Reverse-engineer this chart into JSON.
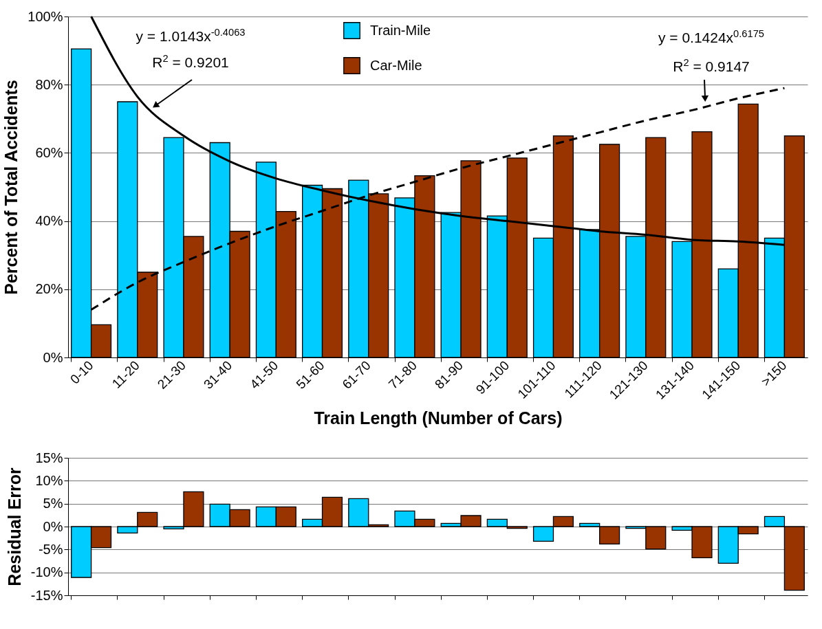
{
  "chart_data": [
    {
      "type": "bar",
      "ylabel": "Percent of Total Accidents",
      "xlabel": "Train Length (Number of Cars)",
      "categories": [
        "0-10",
        "11-20",
        "21-30",
        "31-40",
        "41-50",
        "51-60",
        "61-70",
        "71-80",
        "81-90",
        "91-100",
        "101-110",
        "111-120",
        "121-130",
        "131-140",
        "141-150",
        ">150"
      ],
      "series": [
        {
          "name": "Train-Mile",
          "color": "#00ccff",
          "values": [
            90.5,
            75,
            64.5,
            63,
            57.3,
            50.5,
            52,
            46.8,
            42.5,
            41.5,
            35,
            37.5,
            35.5,
            34,
            26,
            35
          ]
        },
        {
          "name": "Car-Mile",
          "color": "#993300",
          "values": [
            9.6,
            25,
            35.5,
            37,
            42.8,
            49.5,
            48,
            53.3,
            57.7,
            58.5,
            65,
            62.5,
            64.5,
            66.2,
            74.3,
            65
          ]
        },
        {
          "type": "line",
          "color": "#000000",
          "line_style": "solid",
          "values": [
            100,
            76.5,
            65,
            57.5,
            52.5,
            49,
            46,
            43.5,
            41.5,
            40,
            38.5,
            37,
            36,
            34.5,
            34,
            33
          ]
        },
        {
          "type": "line",
          "color": "#000000",
          "line_style": "dashed",
          "values": [
            14,
            22,
            28,
            33.5,
            38.5,
            43,
            47.5,
            51.5,
            55.5,
            59,
            62.5,
            66,
            69.5,
            72.5,
            76,
            79
          ]
        }
      ],
      "ylim": [
        0,
        100
      ],
      "yticks": [
        {
          "value": 0,
          "label": "0%"
        },
        {
          "value": 20,
          "label": "20%"
        },
        {
          "value": 40,
          "label": "40%"
        },
        {
          "value": 60,
          "label": "60%"
        },
        {
          "value": 80,
          "label": "80%"
        },
        {
          "value": 100,
          "label": "100%"
        }
      ],
      "grid": "y",
      "legend": "top",
      "annotations": [
        "y = 1.0143x$^{-0.4063}$",
        "R$^{2}$ = 0.9201",
        "y = 0.1424x$^{0.6175}$",
        "R$^{2}$ = 0.9147"
      ]
    },
    {
      "type": "bar",
      "ylabel": "Residual Error",
      "categories": [
        null,
        null,
        null,
        null,
        null,
        null,
        null,
        null,
        null,
        null,
        null,
        null,
        null,
        null,
        null,
        null
      ],
      "series": [
        {
          "color": "#00ccff",
          "values": [
            -11.1,
            -1.4,
            -0.5,
            4.9,
            4.3,
            1.6,
            6.1,
            3.4,
            0.7,
            1.6,
            -3.2,
            0.7,
            -0.4,
            -0.8,
            -8,
            2.2
          ]
        },
        {
          "color": "#993300",
          "values": [
            -4.6,
            3.1,
            7.6,
            3.7,
            4.3,
            6.4,
            0.4,
            1.6,
            2.4,
            -0.4,
            2.2,
            -3.8,
            -4.9,
            -6.8,
            -1.6,
            -13.9
          ]
        }
      ],
      "ylim": [
        -15,
        15
      ],
      "yticks": [
        {
          "value": -15,
          "label": "-15%"
        },
        {
          "value": -10,
          "label": "-10%"
        },
        {
          "value": -5,
          "label": "-5%"
        },
        {
          "value": 0,
          "label": "0%"
        },
        {
          "value": 5,
          "label": "5%"
        },
        {
          "value": 10,
          "label": "10%"
        },
        {
          "value": 15,
          "label": "15%"
        }
      ],
      "grid": "y",
      "tick_labels": "y"
    }
  ]
}
